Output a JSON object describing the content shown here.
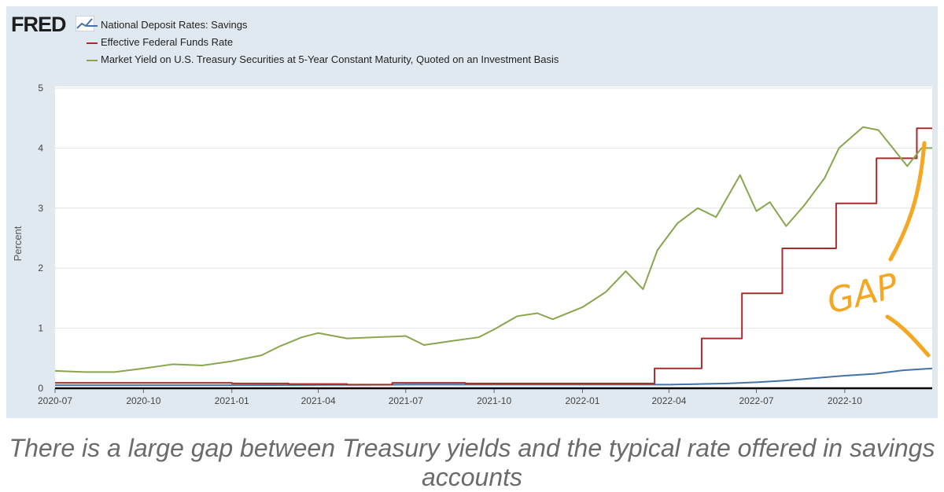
{
  "header": {
    "logo_text": "FRED",
    "logo_icon": "trend-graph-icon"
  },
  "legend": [
    {
      "label": "National Deposit Rates: Savings",
      "color": "#4572a7"
    },
    {
      "label": "Effective Federal Funds Rate",
      "color": "#aa2b2b"
    },
    {
      "label": "Market Yield on U.S. Treasury Securities at 5-Year Constant Maturity, Quoted on an Investment Basis",
      "color": "#89a54e"
    }
  ],
  "annotation": {
    "text": "GAP",
    "color": "#f5a623"
  },
  "caption": "There is a large gap between Treasury yields and the typical rate offered in savings accounts",
  "chart_data": {
    "type": "line",
    "ylabel": "Percent",
    "ylim": [
      0,
      5
    ],
    "yticks": [
      "0",
      "1",
      "2",
      "3",
      "4",
      "5"
    ],
    "xlim": [
      "2020-07-01",
      "2022-12-31"
    ],
    "xticks": [
      {
        "date": "2020-07-01",
        "label": "2020-07"
      },
      {
        "date": "2020-10-01",
        "label": "2020-10"
      },
      {
        "date": "2021-01-01",
        "label": "2021-01"
      },
      {
        "date": "2021-04-01",
        "label": "2021-04"
      },
      {
        "date": "2021-07-01",
        "label": "2021-07"
      },
      {
        "date": "2021-10-01",
        "label": "2021-10"
      },
      {
        "date": "2022-01-01",
        "label": "2022-01"
      },
      {
        "date": "2022-04-01",
        "label": "2022-04"
      },
      {
        "date": "2022-07-01",
        "label": "2022-07"
      },
      {
        "date": "2022-10-01",
        "label": "2022-10"
      }
    ],
    "grid": true,
    "legend_position": "top-left",
    "series": [
      {
        "name": "National Deposit Rates: Savings",
        "color": "#4572a7",
        "points": [
          [
            "2020-07-01",
            0.05
          ],
          [
            "2021-01-01",
            0.05
          ],
          [
            "2021-07-01",
            0.06
          ],
          [
            "2022-01-01",
            0.06
          ],
          [
            "2022-04-01",
            0.06
          ],
          [
            "2022-06-01",
            0.08
          ],
          [
            "2022-07-01",
            0.1
          ],
          [
            "2022-08-01",
            0.13
          ],
          [
            "2022-09-01",
            0.17
          ],
          [
            "2022-10-01",
            0.21
          ],
          [
            "2022-11-01",
            0.24
          ],
          [
            "2022-12-01",
            0.3
          ],
          [
            "2022-12-31",
            0.33
          ]
        ]
      },
      {
        "name": "Effective Federal Funds Rate",
        "color": "#aa2b2b",
        "step": true,
        "points": [
          [
            "2020-07-01",
            0.09
          ],
          [
            "2020-10-01",
            0.09
          ],
          [
            "2021-01-01",
            0.08
          ],
          [
            "2021-03-01",
            0.07
          ],
          [
            "2021-05-01",
            0.06
          ],
          [
            "2021-06-17",
            0.09
          ],
          [
            "2021-09-01",
            0.08
          ],
          [
            "2022-03-17",
            0.33
          ],
          [
            "2022-05-05",
            0.83
          ],
          [
            "2022-06-16",
            1.58
          ],
          [
            "2022-07-28",
            2.33
          ],
          [
            "2022-09-22",
            3.08
          ],
          [
            "2022-11-03",
            3.83
          ],
          [
            "2022-12-15",
            4.33
          ],
          [
            "2022-12-31",
            4.33
          ]
        ]
      },
      {
        "name": "Market Yield on U.S. Treasury Securities at 5-Year Constant Maturity, Quoted on an Investment Basis",
        "color": "#89a54e",
        "points": [
          [
            "2020-07-01",
            0.29
          ],
          [
            "2020-08-01",
            0.27
          ],
          [
            "2020-09-01",
            0.27
          ],
          [
            "2020-10-01",
            0.33
          ],
          [
            "2020-11-01",
            0.4
          ],
          [
            "2020-12-01",
            0.38
          ],
          [
            "2021-01-01",
            0.45
          ],
          [
            "2021-02-01",
            0.55
          ],
          [
            "2021-02-20",
            0.7
          ],
          [
            "2021-03-15",
            0.85
          ],
          [
            "2021-04-01",
            0.92
          ],
          [
            "2021-05-01",
            0.83
          ],
          [
            "2021-06-01",
            0.85
          ],
          [
            "2021-07-01",
            0.87
          ],
          [
            "2021-07-20",
            0.72
          ],
          [
            "2021-08-15",
            0.78
          ],
          [
            "2021-09-15",
            0.85
          ],
          [
            "2021-10-01",
            0.98
          ],
          [
            "2021-10-25",
            1.2
          ],
          [
            "2021-11-15",
            1.25
          ],
          [
            "2021-12-01",
            1.15
          ],
          [
            "2022-01-01",
            1.35
          ],
          [
            "2022-01-25",
            1.6
          ],
          [
            "2022-02-15",
            1.95
          ],
          [
            "2022-03-05",
            1.65
          ],
          [
            "2022-03-20",
            2.3
          ],
          [
            "2022-04-10",
            2.75
          ],
          [
            "2022-05-01",
            3.0
          ],
          [
            "2022-05-20",
            2.85
          ],
          [
            "2022-06-14",
            3.55
          ],
          [
            "2022-07-01",
            2.95
          ],
          [
            "2022-07-15",
            3.1
          ],
          [
            "2022-08-01",
            2.7
          ],
          [
            "2022-08-20",
            3.05
          ],
          [
            "2022-09-10",
            3.5
          ],
          [
            "2022-09-25",
            4.0
          ],
          [
            "2022-10-20",
            4.35
          ],
          [
            "2022-11-05",
            4.3
          ],
          [
            "2022-11-20",
            4.0
          ],
          [
            "2022-12-05",
            3.7
          ],
          [
            "2022-12-20",
            4.0
          ],
          [
            "2022-12-31",
            4.0
          ]
        ]
      }
    ]
  }
}
